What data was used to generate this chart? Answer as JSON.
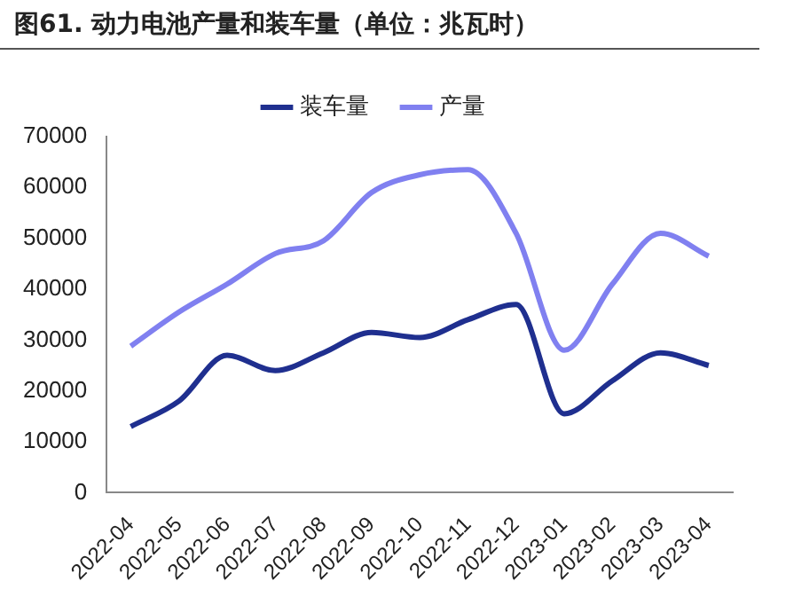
{
  "chart_data": {
    "type": "line",
    "title": "图61. 动力电池产量和装车量（单位：兆瓦时）",
    "categories": [
      "2022-04",
      "2022-05",
      "2022-06",
      "2022-07",
      "2022-08",
      "2022-09",
      "2022-10",
      "2022-11",
      "2022-12",
      "2023-01",
      "2023-02",
      "2023-03",
      "2023-04"
    ],
    "series": [
      {
        "name": "装车量",
        "color": "#1f2f8f",
        "values": [
          13000,
          18000,
          27000,
          24000,
          27500,
          31500,
          30500,
          34000,
          37000,
          15500,
          22000,
          27500,
          25000
        ]
      },
      {
        "name": "产量",
        "color": "#8080f0",
        "values": [
          28800,
          35500,
          41000,
          47000,
          49500,
          59000,
          62500,
          63500,
          51000,
          28000,
          41000,
          51000,
          46500
        ]
      }
    ],
    "ylim": [
      0,
      70000
    ],
    "yticks": [
      0,
      10000,
      20000,
      30000,
      40000,
      50000,
      60000,
      70000
    ],
    "grid": false,
    "legend": "top",
    "marker": "none",
    "line_style": "solid"
  }
}
